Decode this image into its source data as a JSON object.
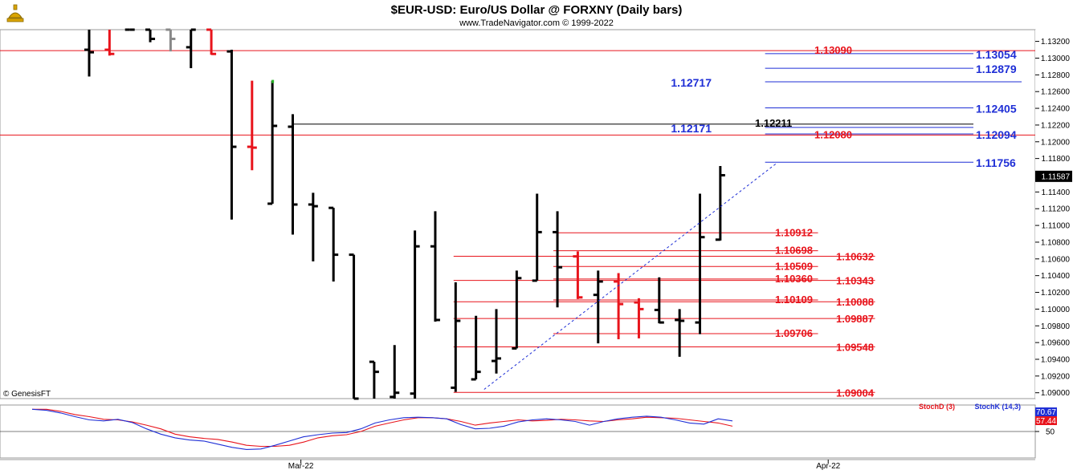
{
  "header": {
    "title": "$EUR-USD:  Euro/US Dollar @ FORXNY  (Daily bars)",
    "subtitle": "www.TradeNavigator.com © 1999-2022",
    "logo_icon": "trade-navigator-genie-lamp-icon"
  },
  "watermark": "© GenesisFT",
  "colors": {
    "red": "#e8141c",
    "blue": "#1f2fd6",
    "black": "#000000",
    "grid": "#d9d9d9",
    "up_tick": "#28b428",
    "gray_bar": "#888888"
  },
  "chart_data": [
    {
      "type": "ohlc",
      "title": "$EUR-USD:  Euro/US Dollar @ FORXNY  (Daily bars)",
      "ylim": [
        1.0893,
        1.1334
      ],
      "y_ticks": [
        "1.13200",
        "1.13000",
        "1.12800",
        "1.12600",
        "1.12400",
        "1.12200",
        "1.12000",
        "1.11800",
        "1.11600",
        "1.11400",
        "1.11200",
        "1.11000",
        "1.10800",
        "1.10600",
        "1.10400",
        "1.10200",
        "1.10000",
        "1.09800",
        "1.09600",
        "1.09400",
        "1.09200",
        "1.09000"
      ],
      "last_price": "1.11587",
      "x_labels": [
        {
          "label": "Mar-22",
          "index": 10.4
        },
        {
          "label": "Apr-22",
          "index": 36.3
        }
      ],
      "bars": [
        {
          "o": 1.131,
          "h": 1.1334,
          "l": 1.1278,
          "c": 1.1307,
          "color": "black"
        },
        {
          "o": 1.131,
          "h": 1.1334,
          "l": 1.1303,
          "c": 1.1305,
          "color": "red"
        },
        {
          "o": 1.1334,
          "h": 1.1334,
          "l": 1.1334,
          "c": 1.1334,
          "color": "black"
        },
        {
          "o": 1.1334,
          "h": 1.1334,
          "l": 1.1319,
          "c": 1.1323,
          "color": "black"
        },
        {
          "o": 1.1334,
          "h": 1.1334,
          "l": 1.1308,
          "c": 1.1323,
          "color": "gray"
        },
        {
          "o": 1.1313,
          "h": 1.1334,
          "l": 1.1288,
          "c": 1.1334,
          "color": "black"
        },
        {
          "o": 1.1334,
          "h": 1.1334,
          "l": 1.1304,
          "c": 1.1305,
          "color": "red"
        },
        {
          "o": 1.1308,
          "h": 1.131,
          "l": 1.1107,
          "c": 1.1194,
          "color": "black"
        },
        {
          "o": 1.1194,
          "h": 1.1273,
          "l": 1.1166,
          "c": 1.1193,
          "color": "red"
        },
        {
          "o": 1.1126,
          "h": 1.1273,
          "l": 1.1126,
          "c": 1.1219,
          "color": "black"
        },
        {
          "o": 1.1218,
          "h": 1.1233,
          "l": 1.1089,
          "c": 1.1125,
          "color": "black"
        },
        {
          "o": 1.1125,
          "h": 1.1139,
          "l": 1.1057,
          "c": 1.1123,
          "color": "black"
        },
        {
          "o": 1.1121,
          "h": 1.1121,
          "l": 1.1033,
          "c": 1.1065,
          "color": "black"
        },
        {
          "o": 1.1065,
          "h": 1.1065,
          "l": 1.0893,
          "c": 1.0893,
          "color": "black"
        },
        {
          "o": 1.0937,
          "h": 1.0937,
          "l": 1.0893,
          "c": 1.0925,
          "color": "black"
        },
        {
          "o": 1.0895,
          "h": 1.0957,
          "l": 1.0893,
          "c": 1.09,
          "color": "black"
        },
        {
          "o": 1.0899,
          "h": 1.1094,
          "l": 1.0893,
          "c": 1.1075,
          "color": "black"
        },
        {
          "o": 1.1075,
          "h": 1.1117,
          "l": 1.0985,
          "c": 1.0987,
          "color": "black"
        },
        {
          "o": 1.0906,
          "h": 1.1032,
          "l": 1.0901,
          "c": 1.0986,
          "color": "black"
        },
        {
          "o": 1.0916,
          "h": 1.0992,
          "l": 1.0916,
          "c": 1.0925,
          "color": "black"
        },
        {
          "o": 1.0938,
          "h": 1.1,
          "l": 1.0923,
          "c": 1.0941,
          "color": "black"
        },
        {
          "o": 1.0953,
          "h": 1.1046,
          "l": 1.0953,
          "c": 1.1037,
          "color": "black"
        },
        {
          "o": 1.1034,
          "h": 1.1138,
          "l": 1.1034,
          "c": 1.1092,
          "color": "black"
        },
        {
          "o": 1.1092,
          "h": 1.1117,
          "l": 1.1002,
          "c": 1.105,
          "color": "black"
        },
        {
          "o": 1.1063,
          "h": 1.1069,
          "l": 1.1012,
          "c": 1.1014,
          "color": "red"
        },
        {
          "o": 1.1017,
          "h": 1.1046,
          "l": 1.0959,
          "c": 1.1033,
          "color": "black"
        },
        {
          "o": 1.1033,
          "h": 1.1043,
          "l": 1.0964,
          "c": 1.1006,
          "color": "red"
        },
        {
          "o": 1.1008,
          "h": 1.1013,
          "l": 1.0965,
          "c": 1.1,
          "color": "red"
        },
        {
          "o": 1.0999,
          "h": 1.1038,
          "l": 1.0983,
          "c": 1.0984,
          "color": "black"
        },
        {
          "o": 1.0987,
          "h": 1.1,
          "l": 1.0943,
          "c": 1.0986,
          "color": "black"
        },
        {
          "o": 1.0984,
          "h": 1.1138,
          "l": 1.097,
          "c": 1.1086,
          "color": "black"
        },
        {
          "o": 1.1083,
          "h": 1.1171,
          "l": 1.1082,
          "c": 1.116,
          "color": "black"
        }
      ],
      "trendline": {
        "from": {
          "index": 19.4,
          "y": 1.0904
        },
        "to": {
          "index": 33.8,
          "y": 1.1175
        },
        "style": "dashed"
      },
      "levels": [
        {
          "value": 1.1309,
          "label": "1.13090",
          "color": "red",
          "span": "full",
          "label_side": "right"
        },
        {
          "value": 1.1208,
          "label": "1.12080",
          "color": "red",
          "span": "full",
          "label_side": "right"
        },
        {
          "value": 1.13054,
          "label": "1.13054",
          "color": "blue",
          "from_index": 33.2,
          "label_side": "right"
        },
        {
          "value": 1.12879,
          "label": "1.12879",
          "color": "blue",
          "from_index": 33.2,
          "label_side": "right"
        },
        {
          "value": 1.12717,
          "label": "1.12717",
          "color": "blue",
          "from_index": 33.2,
          "to_index": 45.8,
          "label_side": "left"
        },
        {
          "value": 1.12405,
          "label": "1.12405",
          "color": "blue",
          "from_index": 33.2,
          "label_side": "right"
        },
        {
          "value": 1.12171,
          "label": "1.12171",
          "color": "blue",
          "from_index": 33.2,
          "label_side": "left"
        },
        {
          "value": 1.12094,
          "label": "1.12094",
          "color": "blue",
          "from_index": 33.2,
          "label_side": "right"
        },
        {
          "value": 1.11756,
          "label": "1.11756",
          "color": "blue",
          "from_index": 33.2,
          "label_side": "right"
        },
        {
          "value": 1.12211,
          "label": "1.12211",
          "color": "black",
          "from_index": 10.0,
          "label_side": "mid"
        },
        {
          "value": 1.10912,
          "label": "1.10912",
          "color": "red",
          "from_index": 22.8,
          "to_index": 35.8,
          "label_side": "inner"
        },
        {
          "value": 1.10698,
          "label": "1.10698",
          "color": "red",
          "from_index": 22.8,
          "to_index": 35.8,
          "label_side": "inner"
        },
        {
          "value": 1.10632,
          "label": "1.10632",
          "color": "red",
          "from_index": 17.9,
          "to_index": 38.6,
          "label_side": "outer"
        },
        {
          "value": 1.10509,
          "label": "1.10509",
          "color": "red",
          "from_index": 22.8,
          "to_index": 35.8,
          "label_side": "inner"
        },
        {
          "value": 1.1036,
          "label": "1.10360",
          "color": "red",
          "from_index": 22.8,
          "to_index": 35.8,
          "label_side": "inner"
        },
        {
          "value": 1.10343,
          "label": "1.10343",
          "color": "red",
          "from_index": 17.9,
          "to_index": 38.6,
          "label_side": "outer"
        },
        {
          "value": 1.10109,
          "label": "1.10109",
          "color": "red",
          "from_index": 22.8,
          "to_index": 35.8,
          "label_side": "inner"
        },
        {
          "value": 1.10088,
          "label": "1.10088",
          "color": "red",
          "from_index": 17.9,
          "to_index": 38.6,
          "label_side": "outer"
        },
        {
          "value": 1.09887,
          "label": "1.09887",
          "color": "red",
          "from_index": 17.9,
          "to_index": 38.6,
          "label_side": "outer"
        },
        {
          "value": 1.09706,
          "label": "1.09706",
          "color": "red",
          "from_index": 22.8,
          "to_index": 35.8,
          "label_side": "inner"
        },
        {
          "value": 1.09548,
          "label": "1.09548",
          "color": "red",
          "from_index": 17.9,
          "to_index": 38.6,
          "label_side": "outer"
        },
        {
          "value": 1.09004,
          "label": "1.09004",
          "color": "red",
          "from_index": 17.9,
          "to_index": 38.6,
          "label_side": "outer"
        }
      ]
    },
    {
      "type": "line",
      "title": "",
      "ylim": [
        0,
        100
      ],
      "reference_line": 50,
      "y_ticks": [
        "50"
      ],
      "legend": [
        "StochD (3)",
        "StochK (14,3)"
      ],
      "last_values": [
        {
          "label": "70.67",
          "color": "blue"
        },
        {
          "label": "57.44",
          "color": "red"
        }
      ],
      "series": [
        {
          "name": "StochD (3)",
          "color": "red",
          "values": [
            92,
            92,
            88,
            82,
            78,
            73,
            72,
            68,
            62,
            55,
            45,
            40,
            37,
            35,
            30,
            24,
            22,
            22,
            24,
            30,
            38,
            42,
            44,
            50,
            60,
            66,
            72,
            76,
            76,
            74,
            69,
            62,
            66,
            69,
            72,
            70,
            71,
            73,
            72,
            70,
            69,
            72,
            74,
            77,
            76,
            75,
            72,
            69,
            66,
            60
          ]
        },
        {
          "name": "StochK (14,3)",
          "color": "blue",
          "values": [
            92,
            90,
            85,
            78,
            72,
            70,
            73,
            67,
            55,
            45,
            38,
            34,
            32,
            26,
            20,
            16,
            17,
            24,
            32,
            40,
            44,
            47,
            48,
            55,
            66,
            72,
            76,
            77,
            76,
            74,
            63,
            55,
            56,
            60,
            68,
            72,
            74,
            72,
            69,
            62,
            69,
            74,
            77,
            79,
            77,
            72,
            66,
            64,
            74,
            70
          ]
        }
      ]
    }
  ]
}
